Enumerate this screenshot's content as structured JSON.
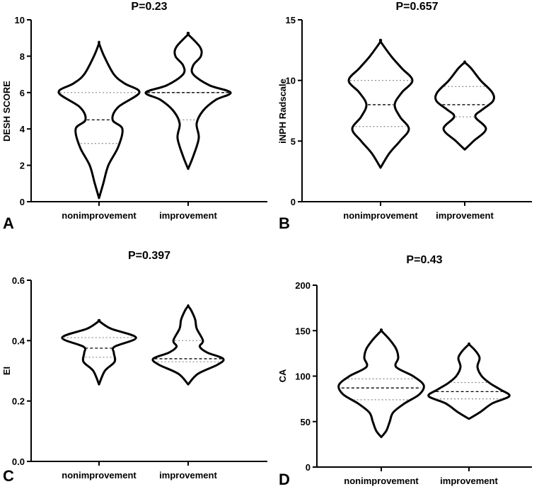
{
  "chart_data": [
    {
      "panel": "A",
      "type": "violin",
      "title": "P=0.23",
      "ylabel": "DESH SCORE",
      "ylim": [
        0,
        10
      ],
      "yticks": [
        0,
        2,
        4,
        6,
        8,
        10
      ],
      "categories": [
        "nonimprovement",
        "improvement"
      ],
      "series": [
        {
          "name": "nonimprovement",
          "min": 0.2,
          "max": 8.7,
          "q1": 3.2,
          "median": 4.5,
          "q3": 6.0,
          "profile": [
            [
              0.2,
              0
            ],
            [
              1,
              0.1
            ],
            [
              2,
              0.22
            ],
            [
              3,
              0.45
            ],
            [
              4,
              0.55
            ],
            [
              4.5,
              0.32
            ],
            [
              5.2,
              0.45
            ],
            [
              6,
              0.95
            ],
            [
              6.5,
              0.6
            ],
            [
              7,
              0.35
            ],
            [
              8,
              0.12
            ],
            [
              8.7,
              0
            ]
          ]
        },
        {
          "name": "improvement",
          "min": 1.8,
          "max": 9.2,
          "q1": 4.5,
          "median": 6.0,
          "q3": 6.0,
          "profile": [
            [
              1.8,
              0
            ],
            [
              2.5,
              0.12
            ],
            [
              3.5,
              0.25
            ],
            [
              4.3,
              0.2
            ],
            [
              5,
              0.35
            ],
            [
              5.6,
              0.65
            ],
            [
              6,
              1.0
            ],
            [
              6.4,
              0.5
            ],
            [
              7,
              0.12
            ],
            [
              7.5,
              0.12
            ],
            [
              8,
              0.3
            ],
            [
              8.5,
              0.28
            ],
            [
              9.2,
              0
            ]
          ]
        }
      ]
    },
    {
      "panel": "B",
      "type": "violin",
      "title": "P=0.657",
      "ylabel": "iNPH Radscale",
      "ylim": [
        0,
        15
      ],
      "yticks": [
        0,
        5,
        10,
        15
      ],
      "categories": [
        "nonimprovement",
        "improvement"
      ],
      "series": [
        {
          "name": "nonimprovement",
          "min": 2.8,
          "max": 13.2,
          "q1": 6.2,
          "median": 8.0,
          "q3": 10.0,
          "profile": [
            [
              2.8,
              0
            ],
            [
              4,
              0.25
            ],
            [
              5,
              0.55
            ],
            [
              6,
              0.8
            ],
            [
              7,
              0.55
            ],
            [
              8,
              0.4
            ],
            [
              9,
              0.6
            ],
            [
              10,
              0.9
            ],
            [
              11,
              0.6
            ],
            [
              12,
              0.3
            ],
            [
              13.2,
              0
            ]
          ]
        },
        {
          "name": "improvement",
          "min": 4.3,
          "max": 11.5,
          "q1": 7.0,
          "median": 8.0,
          "q3": 9.5,
          "profile": [
            [
              4.3,
              0
            ],
            [
              5,
              0.25
            ],
            [
              6,
              0.6
            ],
            [
              7,
              0.3
            ],
            [
              7.6,
              0.5
            ],
            [
              8.3,
              0.8
            ],
            [
              9,
              0.78
            ],
            [
              10,
              0.45
            ],
            [
              11,
              0.18
            ],
            [
              11.5,
              0
            ]
          ]
        }
      ]
    },
    {
      "panel": "C",
      "type": "violin",
      "title": "P=0.397",
      "ylabel": "EI",
      "ylim": [
        0.0,
        0.6
      ],
      "yticks": [
        0.0,
        0.2,
        0.4,
        0.6
      ],
      "categories": [
        "nonimprovement",
        "improvement"
      ],
      "series": [
        {
          "name": "nonimprovement",
          "min": 0.255,
          "max": 0.465,
          "q1": 0.345,
          "median": 0.375,
          "q3": 0.41,
          "profile": [
            [
              0.255,
              0
            ],
            [
              0.3,
              0.15
            ],
            [
              0.33,
              0.4
            ],
            [
              0.36,
              0.38
            ],
            [
              0.38,
              0.4
            ],
            [
              0.41,
              0.95
            ],
            [
              0.44,
              0.3
            ],
            [
              0.465,
              0
            ]
          ]
        },
        {
          "name": "improvement",
          "min": 0.255,
          "max": 0.515,
          "q1": 0.33,
          "median": 0.34,
          "q3": 0.4,
          "profile": [
            [
              0.255,
              0
            ],
            [
              0.29,
              0.25
            ],
            [
              0.32,
              0.75
            ],
            [
              0.34,
              0.9
            ],
            [
              0.36,
              0.5
            ],
            [
              0.38,
              0.3
            ],
            [
              0.4,
              0.38
            ],
            [
              0.44,
              0.22
            ],
            [
              0.47,
              0.18
            ],
            [
              0.5,
              0.08
            ],
            [
              0.515,
              0
            ]
          ]
        }
      ]
    },
    {
      "panel": "D",
      "type": "violin",
      "title": "P=0.43",
      "ylabel": "CA",
      "ylim": [
        0,
        200
      ],
      "yticks": [
        0,
        50,
        100,
        150,
        200
      ],
      "categories": [
        "nonimprovement",
        "improvement"
      ],
      "series": [
        {
          "name": "nonimprovement",
          "min": 33,
          "max": 150,
          "q1": 74,
          "median": 87,
          "q3": 97,
          "profile": [
            [
              33,
              0
            ],
            [
              40,
              0.12
            ],
            [
              50,
              0.2
            ],
            [
              60,
              0.28
            ],
            [
              70,
              0.55
            ],
            [
              80,
              0.9
            ],
            [
              90,
              1.0
            ],
            [
              100,
              0.75
            ],
            [
              110,
              0.35
            ],
            [
              120,
              0.4
            ],
            [
              130,
              0.35
            ],
            [
              140,
              0.2
            ],
            [
              150,
              0
            ]
          ]
        },
        {
          "name": "improvement",
          "min": 53,
          "max": 135,
          "q1": 75,
          "median": 83,
          "q3": 93,
          "profile": [
            [
              53,
              0
            ],
            [
              60,
              0.25
            ],
            [
              70,
              0.55
            ],
            [
              78,
              0.95
            ],
            [
              85,
              0.75
            ],
            [
              92,
              0.5
            ],
            [
              100,
              0.3
            ],
            [
              110,
              0.2
            ],
            [
              120,
              0.25
            ],
            [
              128,
              0.15
            ],
            [
              135,
              0
            ]
          ]
        }
      ]
    }
  ]
}
